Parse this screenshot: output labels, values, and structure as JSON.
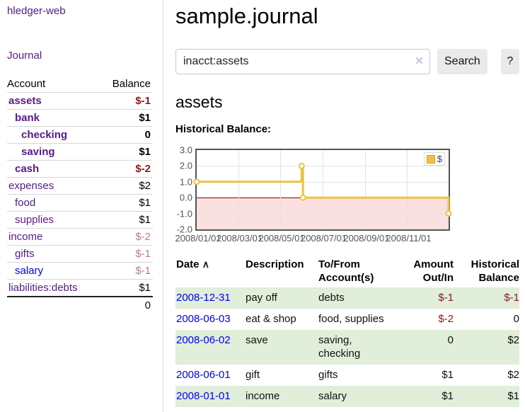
{
  "colors": {
    "link_purple": "#551a8b",
    "link_blue": "#0000ee",
    "negative": "#8c1717",
    "negative_muted": "#bd7d7d",
    "row_stripe_green": "#e0eeda",
    "series_gold": "#edc240",
    "negative_region_pink": "#fbe0e0",
    "zero_line_red": "#8b0000",
    "chart_border": "#545454"
  },
  "sidebar": {
    "app_title": "hledger-web",
    "journal_link": "Journal",
    "accounts_table": {
      "headers": {
        "account": "Account",
        "balance": "Balance"
      },
      "rows": [
        {
          "account": "assets",
          "balance": "$-1",
          "depth": 0,
          "bold": true,
          "balance_class": "neg"
        },
        {
          "account": "bank",
          "balance": "$1",
          "depth": 1,
          "bold": true,
          "balance_class": ""
        },
        {
          "account": "checking",
          "balance": "0",
          "depth": 2,
          "bold": true,
          "balance_class": ""
        },
        {
          "account": "saving",
          "balance": "$1",
          "depth": 2,
          "bold": true,
          "balance_class": ""
        },
        {
          "account": "cash",
          "balance": "$-2",
          "depth": 1,
          "bold": true,
          "balance_class": "neg"
        },
        {
          "account": "expenses",
          "balance": "$2",
          "depth": 0,
          "bold": false,
          "balance_class": ""
        },
        {
          "account": "food",
          "balance": "$1",
          "depth": 1,
          "bold": false,
          "balance_class": ""
        },
        {
          "account": "supplies",
          "balance": "$1",
          "depth": 1,
          "bold": false,
          "balance_class": ""
        },
        {
          "account": "income",
          "balance": "$-2",
          "depth": 0,
          "bold": false,
          "balance_class": "neg-muted"
        },
        {
          "account": "gifts",
          "balance": "$-1",
          "depth": 1,
          "bold": false,
          "balance_class": "neg-muted"
        },
        {
          "account": "salary",
          "balance": "$-1",
          "depth": 1,
          "bold": false,
          "balance_class": "neg-muted",
          "link_class": "blue"
        },
        {
          "account": "liabilities:debts",
          "balance": "$1",
          "depth": 0,
          "bold": false,
          "balance_class": ""
        }
      ],
      "total": "0"
    }
  },
  "main": {
    "page_title": "sample.journal",
    "search": {
      "query": "inacct:assets",
      "clear_icon": "✕",
      "search_button": "Search",
      "help_button": "?"
    },
    "account_heading": "assets",
    "section_label": "Historical Balance:"
  },
  "chart_data": {
    "type": "line",
    "step": true,
    "title": "Historical Balance",
    "legend": [
      {
        "label": "$",
        "color": "#edc240"
      }
    ],
    "x_range": [
      "2008-01-01",
      "2008-12-31"
    ],
    "ylim": [
      -2,
      3
    ],
    "points": [
      {
        "x": "2008-01-01",
        "y": 1
      },
      {
        "x": "2008-06-01",
        "y": 2
      },
      {
        "x": "2008-06-03",
        "y": 0
      },
      {
        "x": "2008-12-31",
        "y": -1
      }
    ],
    "yticks": [
      "3.0",
      "2.0",
      "1.0",
      "0.0",
      "-1.0",
      "-2.0"
    ],
    "xticks": [
      "2008/01/01",
      "2008/03/01",
      "2008/05/01",
      "2008/07/01",
      "2008/09/01",
      "2008/11/01"
    ],
    "negative_region_shaded": true,
    "grid": true,
    "legend_position": "top-right"
  },
  "register": {
    "headers": {
      "date": "Date",
      "sort_icon": "∧",
      "description": "Description",
      "tofrom": "To/From\nAccount(s)",
      "amount": "Amount\nOut/In",
      "balance": "Historical\nBalance"
    },
    "rows": [
      {
        "date": "2008-12-31",
        "description": "pay off",
        "accounts": "debts",
        "amount": "$-1",
        "balance": "$-1",
        "amount_neg": true,
        "balance_neg": true,
        "shaded": true
      },
      {
        "date": "2008-06-03",
        "description": "eat & shop",
        "accounts": "food, supplies",
        "amount": "$-2",
        "balance": "0",
        "amount_neg": true,
        "balance_neg": false,
        "shaded": false
      },
      {
        "date": "2008-06-02",
        "description": "save",
        "accounts": "saving, checking",
        "amount": "0",
        "balance": "$2",
        "amount_neg": false,
        "balance_neg": false,
        "shaded": true
      },
      {
        "date": "2008-06-01",
        "description": "gift",
        "accounts": "gifts",
        "amount": "$1",
        "balance": "$2",
        "amount_neg": false,
        "balance_neg": false,
        "shaded": false
      },
      {
        "date": "2008-01-01",
        "description": "income",
        "accounts": "salary",
        "amount": "$1",
        "balance": "$1",
        "amount_neg": false,
        "balance_neg": false,
        "shaded": true
      }
    ]
  }
}
